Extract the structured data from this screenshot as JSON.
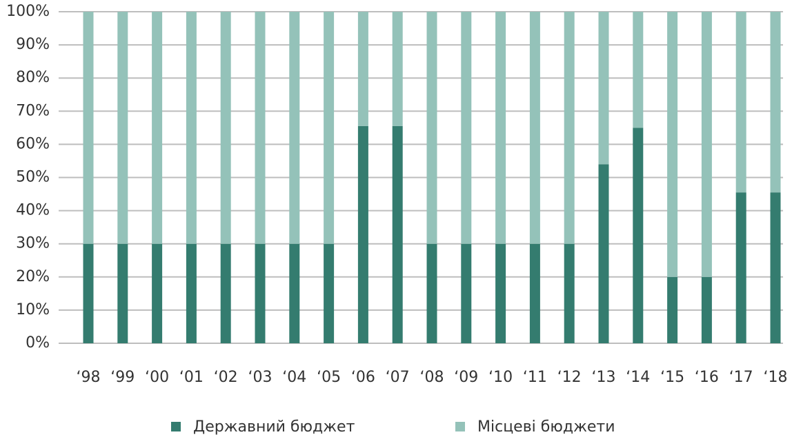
{
  "chart_data": {
    "type": "stacked_bar",
    "categories": [
      "‘98",
      "‘99",
      "‘00",
      "‘01",
      "‘02",
      "‘03",
      "‘04",
      "‘05",
      "‘06",
      "‘07",
      "‘08",
      "‘09",
      "‘10",
      "‘11",
      "‘12",
      "‘13",
      "‘14",
      "‘15",
      "‘16",
      "‘17",
      "‘18"
    ],
    "series": [
      {
        "name": "Державний бюджет",
        "color": "#347c6f",
        "values": [
          30,
          30,
          30,
          30,
          30,
          30,
          30,
          30,
          65.5,
          65.5,
          30,
          30,
          30,
          30,
          30,
          54,
          65,
          20,
          20,
          45.5,
          45.5
        ]
      },
      {
        "name": "Місцеві бюджети",
        "color": "#94c2b9",
        "values": [
          70,
          70,
          70,
          70,
          70,
          70,
          70,
          70,
          34.5,
          34.5,
          70,
          70,
          70,
          70,
          70,
          46,
          35,
          80,
          80,
          54.5,
          54.5
        ]
      }
    ],
    "ylim": [
      0,
      100
    ],
    "yticks": [
      {
        "value": 0,
        "label": "0%"
      },
      {
        "value": 10,
        "label": "10%"
      },
      {
        "value": 20,
        "label": "20%"
      },
      {
        "value": 30,
        "label": "30%"
      },
      {
        "value": 40,
        "label": "40%"
      },
      {
        "value": 50,
        "label": "50%"
      },
      {
        "value": 60,
        "label": "60%"
      },
      {
        "value": 70,
        "label": "70%"
      },
      {
        "value": 80,
        "label": "80%"
      },
      {
        "value": 90,
        "label": "90%"
      },
      {
        "value": 100,
        "label": "100%"
      }
    ],
    "grid": true,
    "legend": "bottom"
  }
}
